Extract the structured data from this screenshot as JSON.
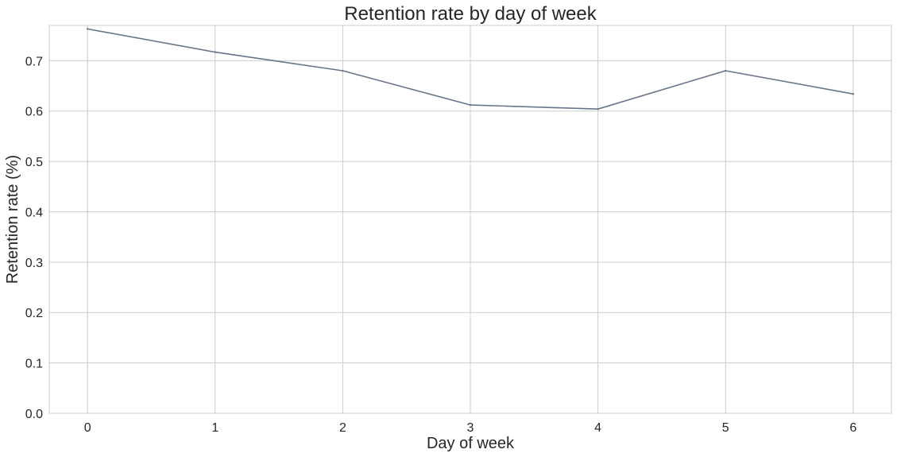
{
  "chart_data": {
    "type": "line",
    "title": "Retention rate by day of week",
    "xlabel": "Day of week",
    "ylabel": "Retention rate (%)",
    "x": [
      0,
      1,
      2,
      3,
      4,
      5,
      6
    ],
    "series": [
      {
        "values": [
          0.763,
          0.717,
          0.68,
          0.612,
          0.604,
          0.68,
          0.634
        ],
        "color": "#66758a"
      }
    ],
    "xticks": [
      "0",
      "1",
      "2",
      "3",
      "4",
      "5",
      "6"
    ],
    "yticks": [
      "0.0",
      "0.1",
      "0.2",
      "0.3",
      "0.4",
      "0.5",
      "0.6",
      "0.7"
    ],
    "xlim": [
      -0.3,
      6.3
    ],
    "ylim": [
      0.0,
      0.77
    ],
    "grid": true,
    "legend": "none"
  }
}
